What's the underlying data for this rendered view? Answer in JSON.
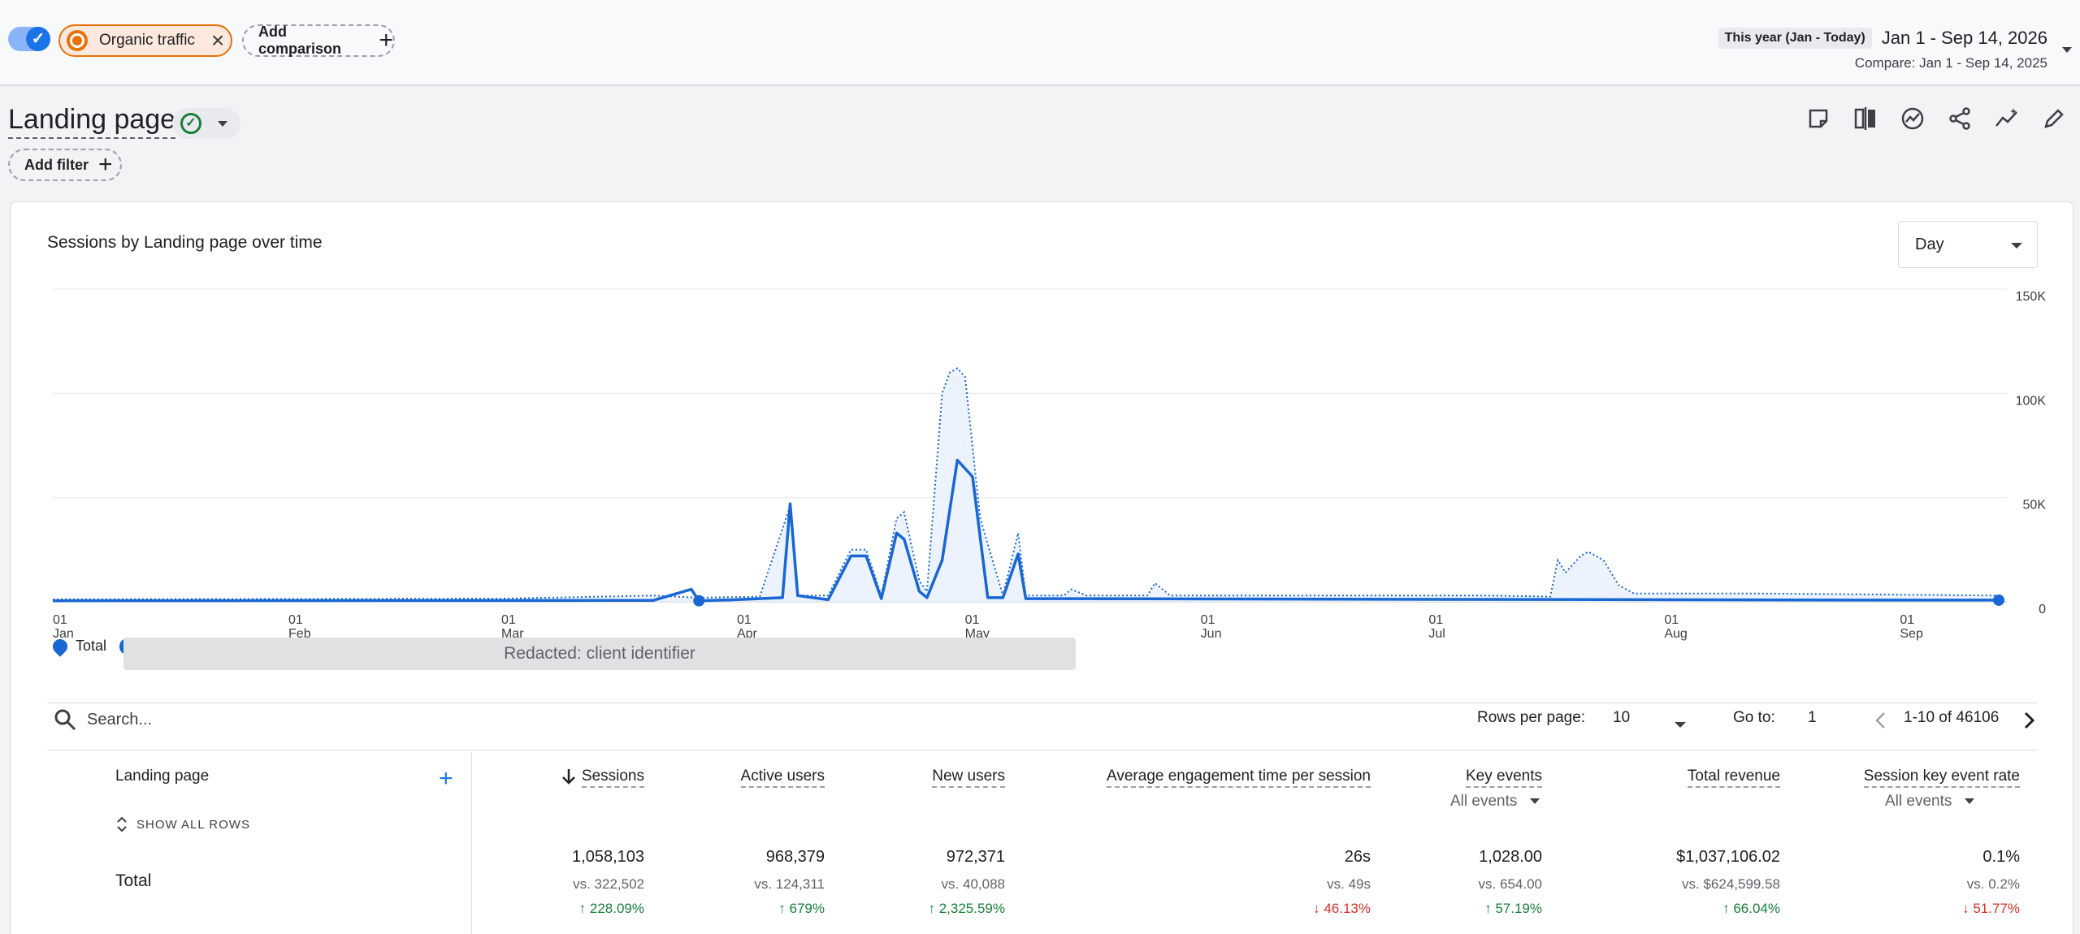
{
  "segment": {
    "label": "Organic traffic"
  },
  "add_comparison": "Add comparison",
  "date": {
    "preset": "This year (Jan - Today)",
    "range": "Jan 1 - Sep 14, 2026",
    "compare": "Compare: Jan 1 - Sep 14, 2025"
  },
  "title": "Landing page",
  "add_filter": "Add filter",
  "toolbar_icons": [
    "note-icon",
    "compare-icon",
    "insights-icon",
    "share-icon",
    "trend-icon",
    "edit-icon"
  ],
  "card": {
    "title": "Sessions by Landing page over time",
    "granularity": "Day"
  },
  "chart_data": {
    "type": "line",
    "title": "Sessions by Landing page over time",
    "x_labels": [
      {
        "day": "01",
        "month": "Jan"
      },
      {
        "day": "01",
        "month": "Feb"
      },
      {
        "day": "01",
        "month": "Mar"
      },
      {
        "day": "01",
        "month": "Apr"
      },
      {
        "day": "01",
        "month": "May"
      },
      {
        "day": "01",
        "month": "Jun"
      },
      {
        "day": "01",
        "month": "Jul"
      },
      {
        "day": "01",
        "month": "Aug"
      },
      {
        "day": "01",
        "month": "Sep"
      }
    ],
    "y_ticks": [
      "0",
      "50K",
      "100K",
      "150K"
    ],
    "ylim": [
      0,
      150000
    ],
    "grid": true,
    "series": [
      {
        "name": "Total",
        "style": "solid",
        "points": [
          [
            1,
            500
          ],
          [
            80,
            700
          ],
          [
            85,
            6000
          ],
          [
            86,
            500
          ],
          [
            90,
            900
          ],
          [
            97,
            2000
          ],
          [
            98,
            47000
          ],
          [
            99,
            3000
          ],
          [
            103,
            1000
          ],
          [
            106,
            22000
          ],
          [
            108,
            22000
          ],
          [
            110,
            1500
          ],
          [
            112,
            33000
          ],
          [
            113,
            30000
          ],
          [
            115,
            5000
          ],
          [
            116,
            2000
          ],
          [
            118,
            20000
          ],
          [
            120,
            68000
          ],
          [
            122,
            60000
          ],
          [
            124,
            2000
          ],
          [
            126,
            2000
          ],
          [
            128,
            23000
          ],
          [
            129,
            1500
          ],
          [
            135,
            1500
          ],
          [
            240,
            800
          ],
          [
            257,
            800
          ]
        ]
      },
      {
        "name": "Total (comparison)",
        "style": "dotted",
        "points": [
          [
            1,
            1200
          ],
          [
            60,
            1500
          ],
          [
            80,
            3000
          ],
          [
            86,
            2000
          ],
          [
            94,
            2500
          ],
          [
            98,
            46000
          ],
          [
            99,
            3000
          ],
          [
            103,
            3000
          ],
          [
            106,
            25000
          ],
          [
            108,
            25000
          ],
          [
            110,
            3000
          ],
          [
            112,
            40000
          ],
          [
            113,
            43000
          ],
          [
            115,
            10000
          ],
          [
            116,
            5000
          ],
          [
            118,
            100000
          ],
          [
            119,
            110000
          ],
          [
            120,
            112000
          ],
          [
            121,
            108000
          ],
          [
            123,
            40000
          ],
          [
            126,
            3000
          ],
          [
            128,
            33000
          ],
          [
            129,
            3000
          ],
          [
            134,
            3000
          ],
          [
            135,
            6000
          ],
          [
            137,
            3000
          ],
          [
            145,
            3000
          ],
          [
            146,
            9000
          ],
          [
            148,
            3000
          ],
          [
            190,
            3000
          ],
          [
            198,
            2500
          ],
          [
            199,
            20000
          ],
          [
            200,
            14000
          ],
          [
            202,
            22000
          ],
          [
            203,
            24000
          ],
          [
            205,
            20000
          ],
          [
            207,
            8000
          ],
          [
            209,
            4000
          ],
          [
            225,
            4000
          ],
          [
            257,
            3000
          ]
        ]
      }
    ]
  },
  "legend": {
    "total": "Total",
    "redacted": "Redacted: client identifier"
  },
  "search": {
    "placeholder": "Search..."
  },
  "pagination": {
    "rows_label": "Rows per page:",
    "rows_value": "10",
    "goto_label": "Go to:",
    "goto_value": "1",
    "range": "1-10 of 46106"
  },
  "table": {
    "dimension": "Landing page",
    "show_all_rows": "SHOW ALL ROWS",
    "sub_select": "All events",
    "total_label": "Total",
    "columns": [
      {
        "name": "Sessions",
        "value": "1,058,103",
        "vs": "vs. 322,502",
        "change": "228.09%",
        "dir": "up"
      },
      {
        "name": "Active users",
        "value": "968,379",
        "vs": "vs. 124,311",
        "change": "679%",
        "dir": "up"
      },
      {
        "name": "New users",
        "value": "972,371",
        "vs": "vs. 40,088",
        "change": "2,325.59%",
        "dir": "up"
      },
      {
        "name": "Average engagement time per session",
        "value": "26s",
        "vs": "vs. 49s",
        "change": "46.13%",
        "dir": "down"
      },
      {
        "name": "Key events",
        "value": "1,028.00",
        "vs": "vs. 654.00",
        "change": "57.19%",
        "dir": "up"
      },
      {
        "name": "Total revenue",
        "value": "$1,037,106.02",
        "vs": "vs. $624,599.58",
        "change": "66.04%",
        "dir": "up"
      },
      {
        "name": "Session key event rate",
        "value": "0.1%",
        "vs": "vs. 0.2%",
        "change": "51.77%",
        "dir": "down"
      }
    ]
  },
  "colors": {
    "primary": "#1a73e8",
    "line": "#1967d2",
    "area": "#e8f0fe",
    "segment": "#e8710a",
    "up": "#188038",
    "down": "#d93025"
  }
}
